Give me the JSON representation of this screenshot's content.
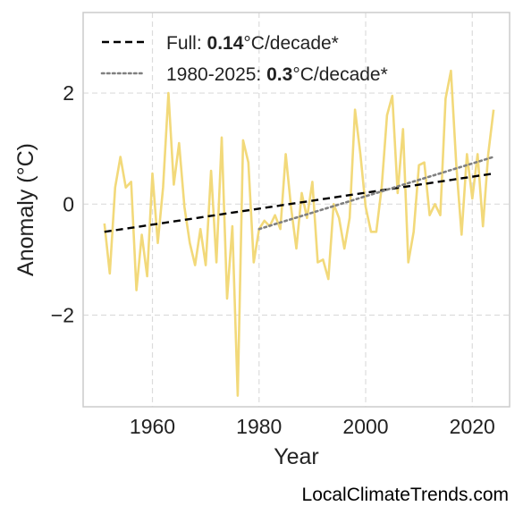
{
  "chart_data": {
    "type": "line",
    "xlabel": "Year",
    "ylabel": "Anomaly (°C)",
    "xlim": [
      1947,
      2027
    ],
    "ylim": [
      -3.65,
      3.45
    ],
    "xticks": [
      1960,
      1980,
      2000,
      2020
    ],
    "yticks": [
      -2,
      0,
      2
    ],
    "xtick_labels": [
      "1960",
      "1980",
      "2000",
      "2020"
    ],
    "ytick_labels": [
      "−2",
      "0",
      "2"
    ],
    "grid": true,
    "legend_position": "top-left",
    "series": [
      {
        "style": "solid",
        "color": "#f2d97a",
        "x": [
          1951,
          1952,
          1953,
          1954,
          1955,
          1956,
          1957,
          1958,
          1959,
          1960,
          1961,
          1962,
          1963,
          1964,
          1965,
          1966,
          1967,
          1968,
          1969,
          1970,
          1971,
          1972,
          1973,
          1974,
          1975,
          1976,
          1977,
          1978,
          1979,
          1980,
          1981,
          1982,
          1983,
          1984,
          1985,
          1986,
          1987,
          1988,
          1989,
          1990,
          1991,
          1992,
          1993,
          1994,
          1995,
          1996,
          1997,
          1998,
          1999,
          2000,
          2001,
          2002,
          2003,
          2004,
          2005,
          2006,
          2007,
          2008,
          2009,
          2010,
          2011,
          2012,
          2013,
          2014,
          2015,
          2016,
          2017,
          2018,
          2019,
          2020,
          2021,
          2022,
          2023,
          2024
        ],
        "values": [
          -0.35,
          -1.25,
          0.3,
          0.85,
          0.3,
          0.4,
          -1.55,
          -0.55,
          -1.3,
          0.55,
          -0.7,
          0.3,
          2.0,
          0.35,
          1.1,
          -0.05,
          -0.7,
          -1.1,
          -0.45,
          -1.1,
          0.6,
          -1.05,
          1.2,
          -1.7,
          -0.4,
          -3.45,
          1.15,
          0.75,
          -1.05,
          -0.45,
          -0.3,
          -0.4,
          -0.2,
          -0.45,
          0.9,
          -0.05,
          -0.8,
          0.2,
          -0.25,
          0.4,
          -1.05,
          -1.0,
          -1.35,
          0.0,
          -0.25,
          -0.8,
          -0.25,
          1.7,
          0.9,
          -0.05,
          -0.5,
          -0.5,
          0.3,
          1.6,
          1.95,
          0.2,
          1.35,
          -1.05,
          -0.5,
          0.7,
          0.75,
          -0.2,
          0.0,
          -0.2,
          1.9,
          2.4,
          0.7,
          -0.55,
          0.9,
          0.1,
          0.9,
          -0.4,
          0.9,
          1.7
        ]
      },
      {
        "label_prefix": "Full: ",
        "label_value": "0.14",
        "label_suffix": "°C/decade*",
        "style": "dashed",
        "color": "#000000",
        "x": [
          1951,
          2024
        ],
        "values": [
          -0.5,
          0.55
        ]
      },
      {
        "label_prefix": "1980-2025: ",
        "label_value": "0.3",
        "label_suffix": "°C/decade*",
        "style": "dotted",
        "color": "#808080",
        "x": [
          1980,
          2024
        ],
        "values": [
          -0.45,
          0.85
        ]
      }
    ]
  },
  "credit": "LocalClimateTrends.com"
}
